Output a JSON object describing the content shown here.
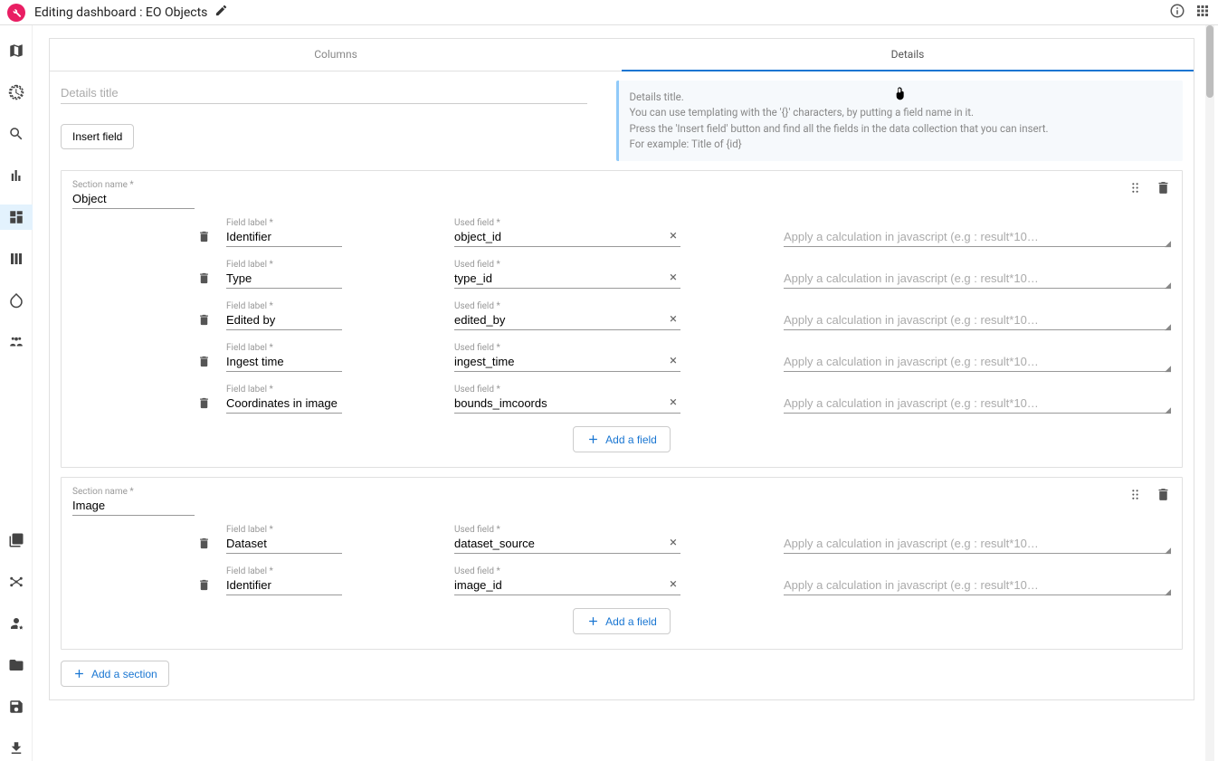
{
  "header": {
    "title": "Editing dashboard : EO Objects"
  },
  "tabs": {
    "columns": "Columns",
    "details": "Details"
  },
  "details_title": {
    "placeholder": "Details title"
  },
  "insert_field_label": "Insert field",
  "help": {
    "l1": "Details title.",
    "l2": "You can use templating with the '{}' characters, by putting a field name in it.",
    "l3": "Press the 'Insert field' button and find all the fields in the data collection that you can insert.",
    "l4": "For example: Title of {id}"
  },
  "labels": {
    "section_name": "Section name *",
    "field_label": "Field label *",
    "used_field": "Used field *",
    "add_field": "Add a field",
    "add_section": "Add a section"
  },
  "calc_placeholder": "Apply a calculation in javascript (e.g : result*10…",
  "sections": [
    {
      "name": "Object",
      "fields": [
        {
          "label": "Identifier",
          "used": "object_id"
        },
        {
          "label": "Type",
          "used": "type_id"
        },
        {
          "label": "Edited by",
          "used": "edited_by"
        },
        {
          "label": "Ingest time",
          "used": "ingest_time"
        },
        {
          "label": "Coordinates in image",
          "used": "bounds_imcoords"
        }
      ]
    },
    {
      "name": "Image",
      "fields": [
        {
          "label": "Dataset",
          "used": "dataset_source"
        },
        {
          "label": "Identifier",
          "used": "image_id"
        }
      ]
    }
  ]
}
